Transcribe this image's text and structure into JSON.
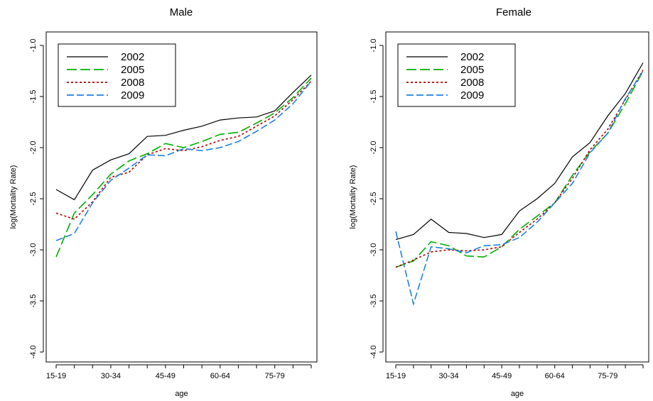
{
  "chart_data": [
    {
      "type": "line",
      "title": "Male",
      "xlabel": "age",
      "ylabel": "log(Mortality Rate)",
      "ylim": [
        -4.0,
        -1.0
      ],
      "x_tick_labels": [
        "15-19",
        "30-34",
        "45-49",
        "60-64",
        "75-79"
      ],
      "y_tick_labels": [
        "-4.0",
        "-3.5",
        "-3.0",
        "-2.5",
        "-2.0",
        "-1.5",
        "-1.0"
      ],
      "legend_position": "top-left",
      "categories": [
        "15-19",
        "20-24",
        "25-29",
        "30-34",
        "35-39",
        "40-44",
        "45-49",
        "50-54",
        "55-59",
        "60-64",
        "65-69",
        "70-74",
        "75-79",
        "80-84",
        "85-89"
      ],
      "series": [
        {
          "name": "2002",
          "color": "#000000",
          "dash": "solid",
          "values": [
            -2.41,
            -2.51,
            -2.22,
            -2.12,
            -2.06,
            -1.89,
            -1.88,
            -1.83,
            -1.79,
            -1.73,
            -1.71,
            -1.7,
            -1.64,
            -1.46,
            -1.29
          ]
        },
        {
          "name": "2005",
          "color": "#00b000",
          "dash": "longdash",
          "values": [
            -3.07,
            -2.64,
            -2.46,
            -2.26,
            -2.13,
            -2.06,
            -1.96,
            -2.0,
            -1.94,
            -1.87,
            -1.85,
            -1.76,
            -1.66,
            -1.51,
            -1.32
          ]
        },
        {
          "name": "2008",
          "color": "#b00000",
          "dash": "dotted",
          "values": [
            -2.64,
            -2.7,
            -2.53,
            -2.29,
            -2.24,
            -2.07,
            -2.01,
            -2.03,
            -1.99,
            -1.93,
            -1.89,
            -1.79,
            -1.69,
            -1.53,
            -1.35
          ]
        },
        {
          "name": "2009",
          "color": "#2080e0",
          "dash": "dashed",
          "values": [
            -2.91,
            -2.84,
            -2.54,
            -2.32,
            -2.2,
            -2.07,
            -2.08,
            -2.01,
            -2.03,
            -2.0,
            -1.94,
            -1.84,
            -1.73,
            -1.57,
            -1.35
          ]
        }
      ]
    },
    {
      "type": "line",
      "title": "Female",
      "xlabel": "age",
      "ylabel": "log(Mortality Rate)",
      "ylim": [
        -4.0,
        -1.0
      ],
      "x_tick_labels": [
        "15-19",
        "30-34",
        "45-49",
        "60-64",
        "75-79"
      ],
      "y_tick_labels": [
        "-4.0",
        "-3.5",
        "-3.0",
        "-2.5",
        "-2.0",
        "-1.5",
        "-1.0"
      ],
      "legend_position": "top-left",
      "categories": [
        "15-19",
        "20-24",
        "25-29",
        "30-34",
        "35-39",
        "40-44",
        "45-49",
        "50-54",
        "55-59",
        "60-64",
        "65-69",
        "70-74",
        "75-79",
        "80-84",
        "85-89"
      ],
      "series": [
        {
          "name": "2002",
          "color": "#000000",
          "dash": "solid",
          "values": [
            -2.9,
            -2.85,
            -2.7,
            -2.83,
            -2.84,
            -2.88,
            -2.85,
            -2.62,
            -2.5,
            -2.35,
            -2.09,
            -1.95,
            -1.69,
            -1.47,
            -1.17
          ]
        },
        {
          "name": "2005",
          "color": "#00b000",
          "dash": "longdash",
          "values": [
            -3.17,
            -3.11,
            -2.92,
            -2.96,
            -3.06,
            -3.07,
            -2.97,
            -2.8,
            -2.67,
            -2.54,
            -2.27,
            -2.04,
            -1.86,
            -1.57,
            -1.25
          ]
        },
        {
          "name": "2008",
          "color": "#b00000",
          "dash": "dotted",
          "values": [
            -3.17,
            -3.1,
            -3.02,
            -3.0,
            -3.01,
            -3.0,
            -2.97,
            -2.83,
            -2.7,
            -2.54,
            -2.3,
            -2.02,
            -1.82,
            -1.53,
            -1.24
          ]
        },
        {
          "name": "2009",
          "color": "#2080e0",
          "dash": "dashed",
          "values": [
            -2.82,
            -3.53,
            -2.97,
            -2.99,
            -3.03,
            -2.96,
            -2.95,
            -2.88,
            -2.73,
            -2.54,
            -2.35,
            -2.05,
            -1.86,
            -1.52,
            -1.25
          ]
        }
      ]
    }
  ]
}
